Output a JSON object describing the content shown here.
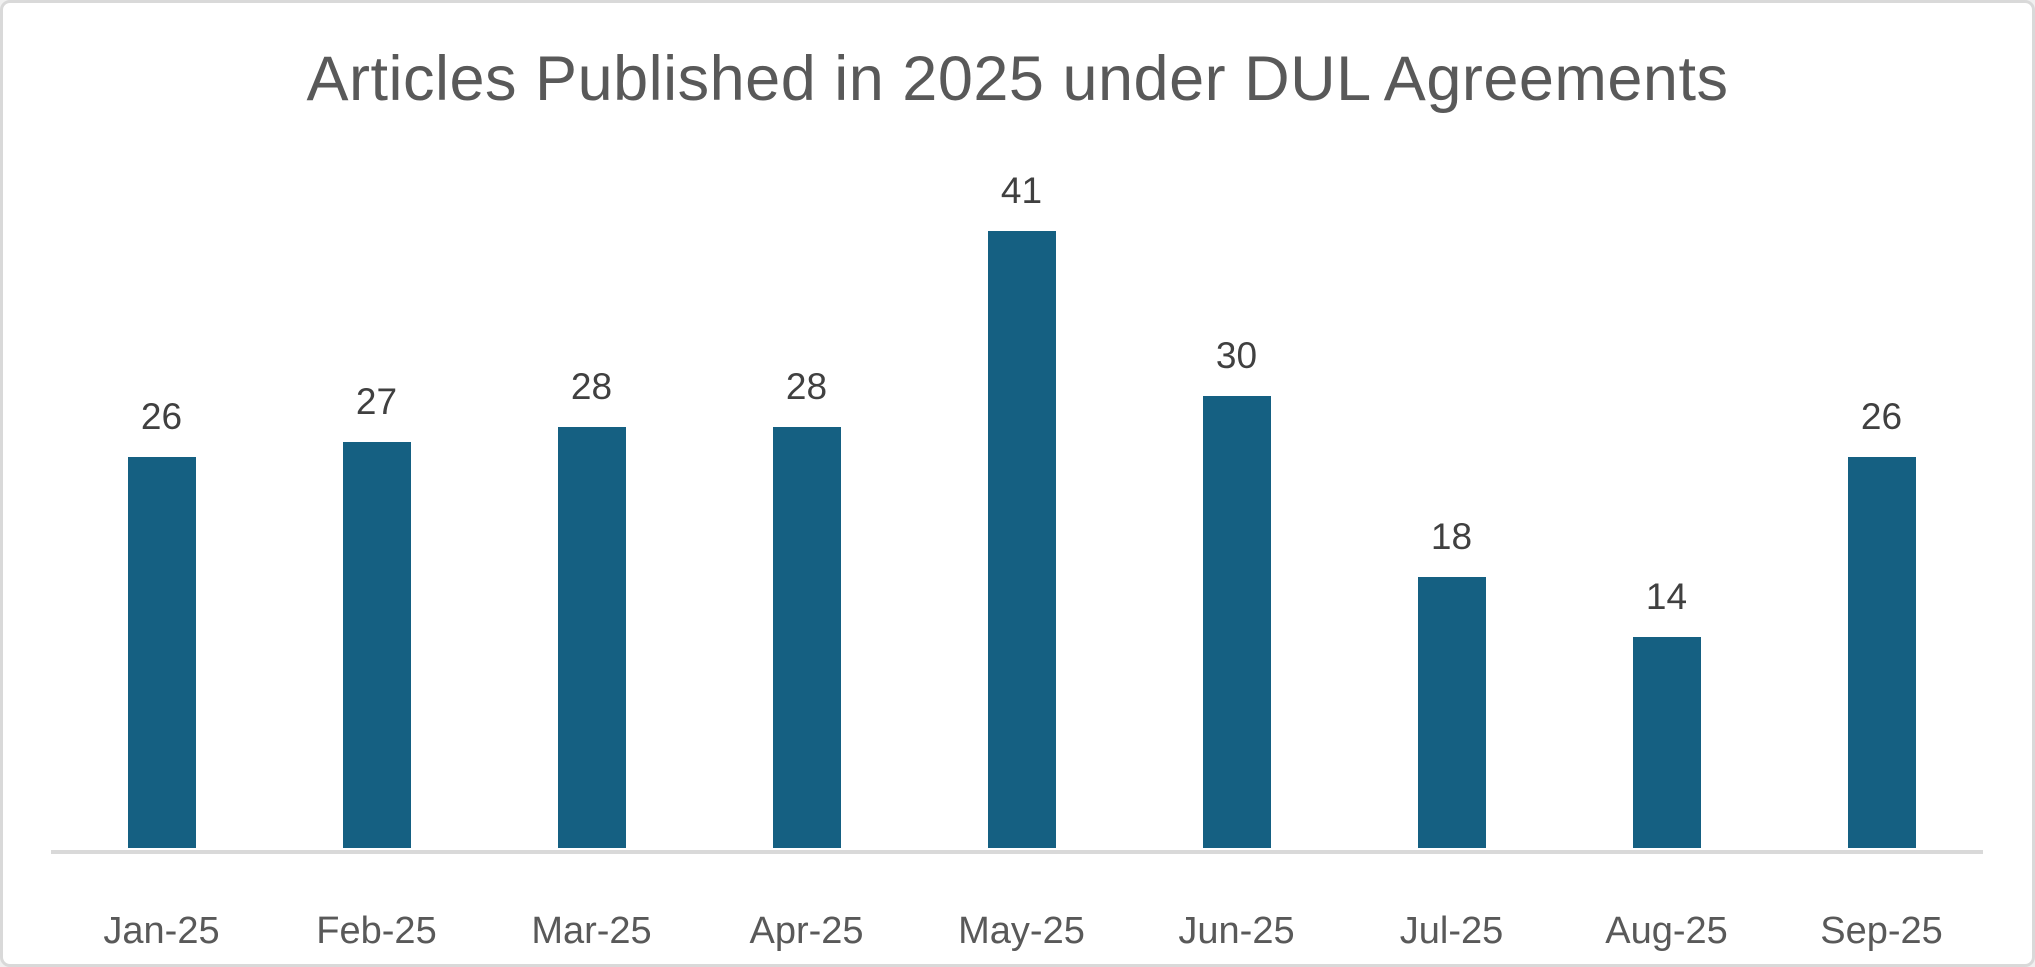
{
  "window": {
    "background": "#ffffff",
    "border_color": "#d9d9d9"
  },
  "chart_data": {
    "type": "bar",
    "title": "Articles Published in 2025 under DUL Agreements",
    "categories": [
      "Jan-25",
      "Feb-25",
      "Mar-25",
      "Apr-25",
      "May-25",
      "Jun-25",
      "Jul-25",
      "Aug-25",
      "Sep-25"
    ],
    "values": [
      26,
      27,
      28,
      28,
      41,
      30,
      18,
      14,
      26
    ],
    "xlabel": "",
    "ylabel": "",
    "ylim": [
      0,
      45
    ],
    "grid": false,
    "legend": false,
    "value_axis_visible": false,
    "data_labels_visible": true,
    "colors": {
      "bar": "#156082",
      "title": "#595959",
      "data_label": "#404040",
      "axis_label": "#595959",
      "axis_line": "#d9d9d9"
    }
  }
}
